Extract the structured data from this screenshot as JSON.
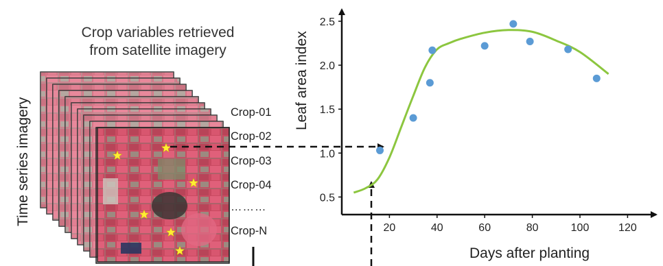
{
  "title_lines": [
    "Crop variables retrieved",
    "from satellite imagery"
  ],
  "side_label": "Time series imagery",
  "crop_labels": [
    "Crop-01",
    "Crop-02",
    "Crop-03",
    "Crop-04",
    "………",
    "Crop-N"
  ],
  "colors": {
    "imagery_red": "#d64a66",
    "stars": "#ffee33",
    "curve": "#8cc63f",
    "points": "#5b9bd5",
    "arrows": "#111111"
  },
  "chart_data": {
    "type": "scatter",
    "xlabel": "Days after planting",
    "ylabel": "Leaf area index",
    "xlim": [
      0,
      125
    ],
    "ylim": [
      0.3,
      2.6
    ],
    "xticks": [
      20,
      40,
      60,
      80,
      100,
      120
    ],
    "yticks": [
      0.5,
      1.0,
      1.5,
      2.0,
      2.5
    ],
    "grid": false,
    "points": [
      {
        "x": 16,
        "y": 1.03
      },
      {
        "x": 30,
        "y": 1.4
      },
      {
        "x": 37,
        "y": 1.8
      },
      {
        "x": 38,
        "y": 2.17
      },
      {
        "x": 60,
        "y": 2.22
      },
      {
        "x": 72,
        "y": 2.47
      },
      {
        "x": 79,
        "y": 2.27
      },
      {
        "x": 95,
        "y": 2.18
      },
      {
        "x": 107,
        "y": 1.85
      }
    ],
    "fit_curve": {
      "x": [
        5,
        10,
        15,
        20,
        25,
        30,
        35,
        40,
        45,
        50,
        60,
        70,
        80,
        90,
        100,
        112
      ],
      "y": [
        0.55,
        0.6,
        0.7,
        0.95,
        1.3,
        1.65,
        1.98,
        2.18,
        2.25,
        2.3,
        2.37,
        2.4,
        2.38,
        2.28,
        2.15,
        1.9
      ]
    }
  }
}
